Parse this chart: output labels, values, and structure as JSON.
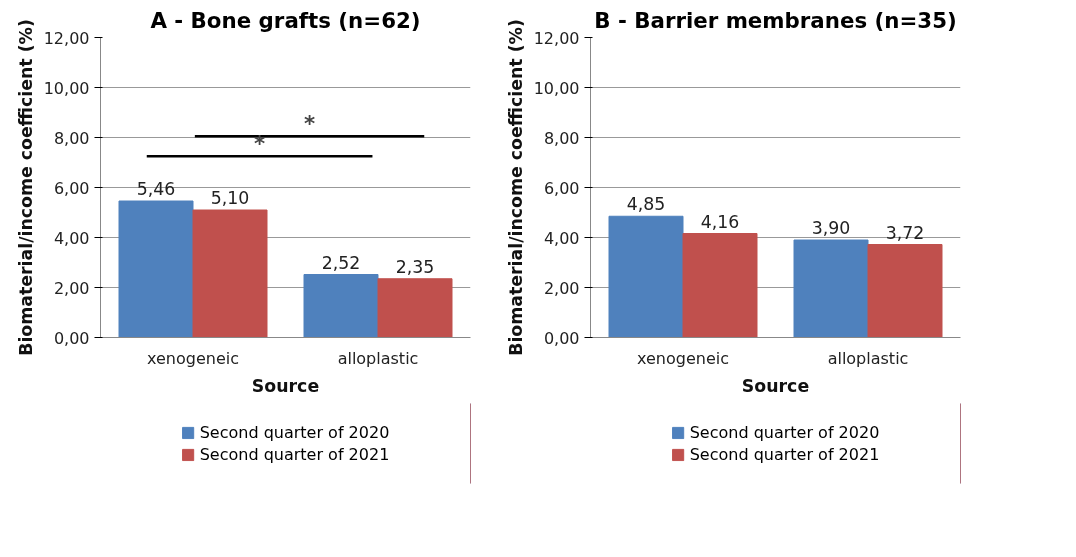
{
  "chart_data": [
    {
      "type": "bar",
      "title": "A - Bone grafts (n=62)",
      "xlabel": "Source",
      "ylabel": "Biomaterial/income coefficient (%)",
      "categories": [
        "xenogeneic",
        "alloplastic"
      ],
      "series": [
        {
          "name": "Second quarter of 2020",
          "color": "#4f81bd",
          "values": [
            5.46,
            2.52
          ],
          "value_labels": [
            "5,46",
            "2,52"
          ]
        },
        {
          "name": "Second quarter of 2021",
          "color": "#c0504d",
          "values": [
            5.1,
            2.35
          ],
          "value_labels": [
            "5,10",
            "2,35"
          ]
        }
      ],
      "ylim": [
        0,
        12
      ],
      "yticks": [
        {
          "value": 0,
          "label": "0,00"
        },
        {
          "value": 2,
          "label": "2,00"
        },
        {
          "value": 4,
          "label": "4,00"
        },
        {
          "value": 6,
          "label": "6,00"
        },
        {
          "value": 8,
          "label": "8,00"
        },
        {
          "value": 10,
          "label": "10,00"
        },
        {
          "value": 12,
          "label": "12,00"
        }
      ],
      "annotations": [
        "*",
        "*"
      ],
      "grid": "y",
      "legend": "bottom"
    },
    {
      "type": "bar",
      "title": "B - Barrier membranes (n=35)",
      "xlabel": "Source",
      "ylabel": "Biomaterial/income coefficient (%)",
      "categories": [
        "xenogeneic",
        "alloplastic"
      ],
      "series": [
        {
          "name": "Second quarter of 2020",
          "color": "#4f81bd",
          "values": [
            4.85,
            3.9
          ],
          "value_labels": [
            "4,85",
            "3,90"
          ]
        },
        {
          "name": "Second quarter of 2021",
          "color": "#c0504d",
          "values": [
            4.16,
            3.72
          ],
          "value_labels": [
            "4,16",
            "3,72"
          ]
        }
      ],
      "ylim": [
        0,
        12
      ],
      "yticks": [
        {
          "value": 0,
          "label": "0,00"
        },
        {
          "value": 2,
          "label": "2,00"
        },
        {
          "value": 4,
          "label": "4,00"
        },
        {
          "value": 6,
          "label": "6,00"
        },
        {
          "value": 8,
          "label": "8,00"
        },
        {
          "value": 10,
          "label": "10,00"
        },
        {
          "value": 12,
          "label": "12,00"
        }
      ],
      "grid": "y",
      "legend": "bottom"
    }
  ]
}
